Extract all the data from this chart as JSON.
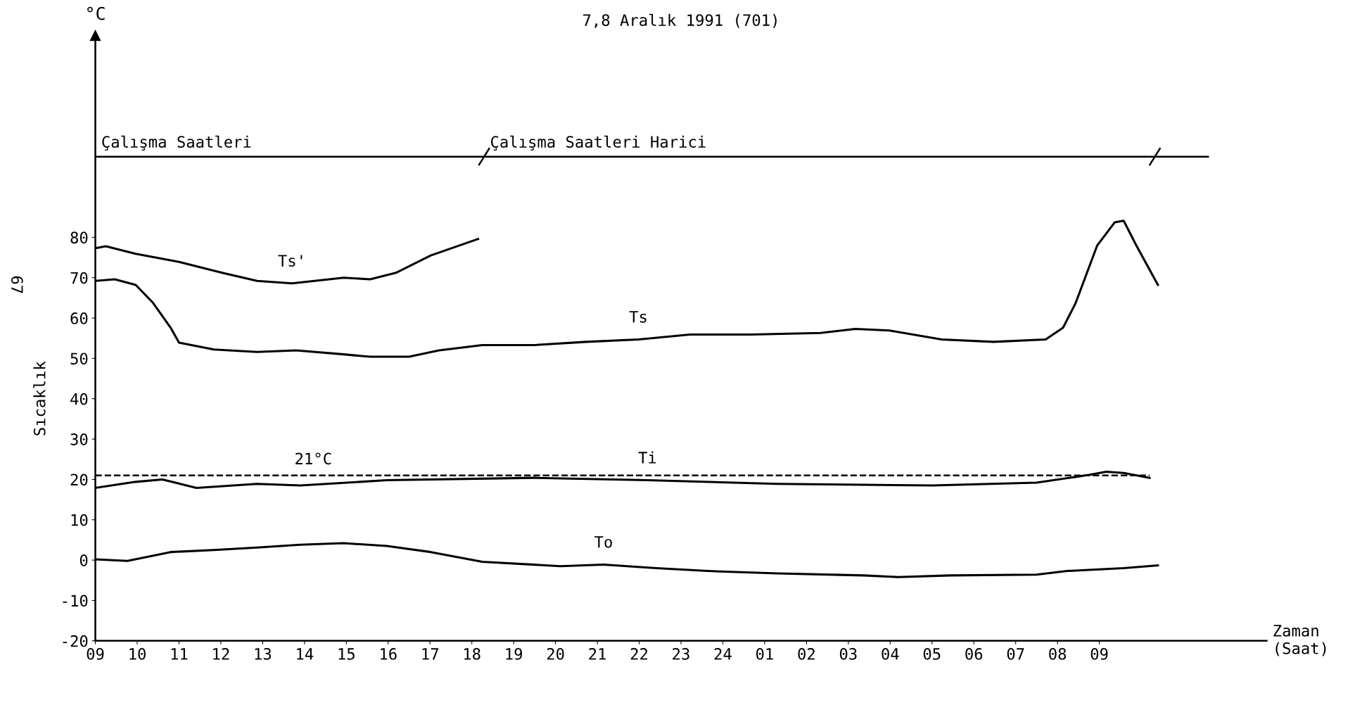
{
  "chart_data": {
    "type": "line",
    "title": "7,8 Aralık 1991 (701)",
    "xlabel": "Zaman\n(Saat)",
    "ylabel": "Sıcaklık",
    "annotations": [
      "°C",
      "67",
      "Çalışma Saatleri",
      "Çalışma Saatleri Harici"
    ],
    "xlim": [
      "1991-12-07T09:00",
      "1991-12-08T13:00"
    ],
    "ylim": [
      -20,
      130
    ],
    "xticks": [
      {
        "value": "1991-12-07T09:00",
        "label": "09"
      },
      {
        "value": "1991-12-07T10:00",
        "label": "10"
      },
      {
        "value": "1991-12-07T11:00",
        "label": "11"
      },
      {
        "value": "1991-12-07T12:00",
        "label": "12"
      },
      {
        "value": "1991-12-07T13:00",
        "label": "13"
      },
      {
        "value": "1991-12-07T14:00",
        "label": "14"
      },
      {
        "value": "1991-12-07T15:00",
        "label": "15"
      },
      {
        "value": "1991-12-07T16:00",
        "label": "16"
      },
      {
        "value": "1991-12-07T17:00",
        "label": "17"
      },
      {
        "value": "1991-12-07T18:00",
        "label": "18"
      },
      {
        "value": "1991-12-07T19:00",
        "label": "19"
      },
      {
        "value": "1991-12-07T20:00",
        "label": "20"
      },
      {
        "value": "1991-12-07T21:00",
        "label": "21"
      },
      {
        "value": "1991-12-07T22:00",
        "label": "22"
      },
      {
        "value": "1991-12-07T23:00",
        "label": "23"
      },
      {
        "value": "1991-12-08T00:00",
        "label": "24"
      },
      {
        "value": "1991-12-08T01:00",
        "label": "01"
      },
      {
        "value": "1991-12-08T02:00",
        "label": "02"
      },
      {
        "value": "1991-12-08T03:00",
        "label": "03"
      },
      {
        "value": "1991-12-08T04:00",
        "label": "04"
      },
      {
        "value": "1991-12-08T05:00",
        "label": "05"
      },
      {
        "value": "1991-12-08T06:00",
        "label": "06"
      },
      {
        "value": "1991-12-08T07:00",
        "label": "07"
      },
      {
        "value": "1991-12-08T08:00",
        "label": "08"
      },
      {
        "value": "1991-12-08T09:00",
        "label": "09"
      }
    ],
    "yticks": [
      -20,
      -10,
      0,
      10,
      20,
      30,
      40,
      50,
      60,
      70,
      80
    ],
    "grid": false,
    "marker": "none",
    "line_style": "solid",
    "ref_lines": [
      {
        "axis": "y",
        "value": 21,
        "label": "21°C",
        "color": "#000000",
        "line_style": "dashed"
      },
      {
        "axis": "y",
        "value": 100,
        "color": "#000000",
        "line_style": "solid"
      }
    ],
    "series": [
      {
        "name": "Ts'",
        "color": "#000000",
        "x": [
          "1991-12-07T09:00",
          "1991-12-07T09:15",
          "1991-12-07T09:58",
          "1991-12-07T11:00",
          "1991-12-07T12:02",
          "1991-12-07T12:52",
          "1991-12-07T13:42",
          "1991-12-07T14:56",
          "1991-12-07T15:34",
          "1991-12-07T16:11",
          "1991-12-07T17:01",
          "1991-12-07T18:09"
        ],
        "values": [
          77.3,
          77.8,
          75.9,
          73.9,
          71.2,
          69.2,
          68.6,
          70,
          69.6,
          71.2,
          75.5,
          79.6
        ]
      },
      {
        "name": "Ts",
        "color": "#000000",
        "x": [
          "1991-12-07T09:00",
          "1991-12-07T09:28",
          "1991-12-07T09:58",
          "1991-12-07T10:23",
          "1991-12-07T10:48",
          "1991-12-07T11:00",
          "1991-12-07T11:50",
          "1991-12-07T12:52",
          "1991-12-07T13:48",
          "1991-12-07T14:56",
          "1991-12-07T15:34",
          "1991-12-07T16:30",
          "1991-12-07T17:13",
          "1991-12-07T18:15",
          "1991-12-07T19:30",
          "1991-12-07T20:44",
          "1991-12-07T21:59",
          "1991-12-07T23:13",
          "1991-12-08T00:40",
          "1991-12-08T02:20",
          "1991-12-08T03:10",
          "1991-12-08T03:59",
          "1991-12-08T05:14",
          "1991-12-08T06:28",
          "1991-12-08T07:43",
          "1991-12-08T08:08",
          "1991-12-08T08:26",
          "1991-12-08T08:57",
          "1991-12-08T09:22",
          "1991-12-08T09:35",
          "1991-12-08T09:53",
          "1991-12-08T10:24"
        ],
        "values": [
          69.2,
          69.6,
          68.2,
          63.7,
          57.6,
          53.9,
          52.2,
          51.6,
          52.0,
          51.0,
          50.4,
          50.4,
          52,
          53.3,
          53.3,
          54.1,
          54.7,
          55.9,
          55.9,
          56.3,
          57.3,
          56.9,
          54.7,
          54.1,
          54.7,
          57.6,
          63.7,
          78,
          83.7,
          84.1,
          78,
          68.2
        ]
      },
      {
        "name": "Ti",
        "color": "#000000",
        "x": [
          "1991-12-07T09:00",
          "1991-12-07T09:58",
          "1991-12-07T10:36",
          "1991-12-07T11:25",
          "1991-12-07T12:52",
          "1991-12-07T13:54",
          "1991-12-07T15:58",
          "1991-12-07T19:30",
          "1991-12-07T22:12",
          "1991-12-08T01:18",
          "1991-12-08T05:01",
          "1991-12-08T07:30",
          "1991-12-08T08:45",
          "1991-12-08T09:10",
          "1991-12-08T09:35",
          "1991-12-08T10:12"
        ],
        "values": [
          17.9,
          19.4,
          20,
          17.9,
          18.9,
          18.5,
          19.8,
          20.4,
          19.8,
          18.9,
          18.5,
          19.2,
          21.1,
          21.9,
          21.6,
          20.4
        ]
      },
      {
        "name": "To",
        "color": "#000000",
        "x": [
          "1991-12-07T09:00",
          "1991-12-07T09:46",
          "1991-12-07T10:48",
          "1991-12-07T11:50",
          "1991-12-07T12:52",
          "1991-12-07T13:54",
          "1991-12-07T14:56",
          "1991-12-07T15:58",
          "1991-12-07T17:01",
          "1991-12-07T18:15",
          "1991-12-07T20:07",
          "1991-12-07T21:09",
          "1991-12-07T22:24",
          "1991-12-07T23:38",
          "1991-12-08T01:18",
          "1991-12-08T03:22",
          "1991-12-08T04:11",
          "1991-12-08T05:26",
          "1991-12-08T07:30",
          "1991-12-08T08:14",
          "1991-12-08T09:35",
          "1991-12-08T10:24"
        ],
        "values": [
          0.2,
          -0.2,
          2,
          2.5,
          3.1,
          3.8,
          4.2,
          3.5,
          2,
          -0.4,
          -1.5,
          -1.1,
          -2,
          -2.7,
          -3.3,
          -3.8,
          -4.2,
          -3.8,
          -3.6,
          -2.7,
          -2,
          -1.3
        ]
      }
    ]
  }
}
